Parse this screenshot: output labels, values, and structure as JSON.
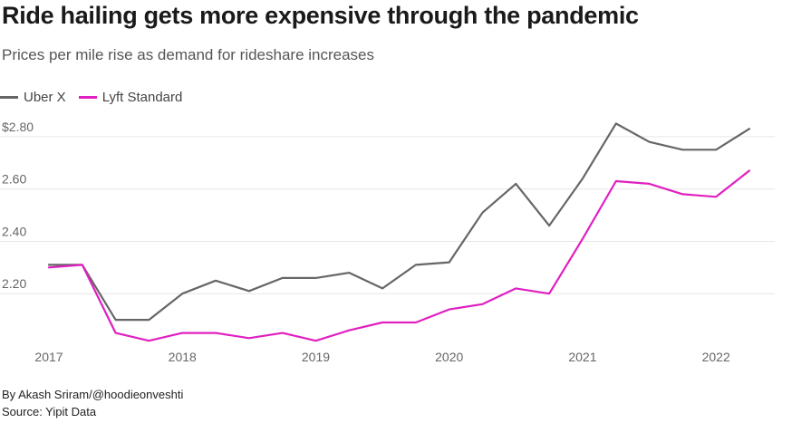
{
  "title": "Ride hailing gets more expensive through the pandemic",
  "subtitle": "Prices per mile rise as demand for rideshare increases",
  "credit": "By Akash Sriram/@hoodieonveshti",
  "source": "Source: Yipit Data",
  "colors": {
    "uber": "#666666",
    "lyft": "#e020c0",
    "grid": "#e6e6e6"
  },
  "chart_data": {
    "type": "line",
    "title": "Ride hailing gets more expensive through the pandemic",
    "subtitle": "Prices per mile rise as demand for rideshare increases",
    "xlabel": "",
    "ylabel": "",
    "x": [
      2017.0,
      2017.25,
      2017.5,
      2017.75,
      2018.0,
      2018.25,
      2018.5,
      2018.75,
      2019.0,
      2019.25,
      2019.5,
      2019.75,
      2020.0,
      2020.25,
      2020.5,
      2020.75,
      2021.0,
      2021.25,
      2021.5,
      2021.75,
      2022.0,
      2022.25
    ],
    "xlim": [
      2017.0,
      2022.25
    ],
    "ylim": [
      2.0,
      2.9
    ],
    "x_ticks": [
      {
        "value": 2017,
        "label": "2017"
      },
      {
        "value": 2018,
        "label": "2018"
      },
      {
        "value": 2019,
        "label": "2019"
      },
      {
        "value": 2020,
        "label": "2020"
      },
      {
        "value": 2021,
        "label": "2021"
      },
      {
        "value": 2022,
        "label": "2022"
      }
    ],
    "y_ticks": [
      {
        "value": 2.2,
        "label": "2.20"
      },
      {
        "value": 2.4,
        "label": "2.40"
      },
      {
        "value": 2.6,
        "label": "2.60"
      },
      {
        "value": 2.8,
        "label": "$2.80"
      }
    ],
    "grid": true,
    "legend": "top-left",
    "series": [
      {
        "name": "Uber X",
        "color": "#666666",
        "values": [
          2.31,
          2.31,
          2.1,
          2.1,
          2.2,
          2.25,
          2.21,
          2.26,
          2.26,
          2.28,
          2.22,
          2.31,
          2.32,
          2.51,
          2.62,
          2.46,
          2.64,
          2.85,
          2.78,
          2.75,
          2.75,
          2.83
        ]
      },
      {
        "name": "Lyft Standard",
        "color": "#e020c0",
        "values": [
          2.3,
          2.31,
          2.05,
          2.02,
          2.05,
          2.05,
          2.03,
          2.05,
          2.02,
          2.06,
          2.09,
          2.09,
          2.14,
          2.16,
          2.22,
          2.2,
          2.41,
          2.63,
          2.62,
          2.58,
          2.57,
          2.67
        ]
      }
    ]
  }
}
